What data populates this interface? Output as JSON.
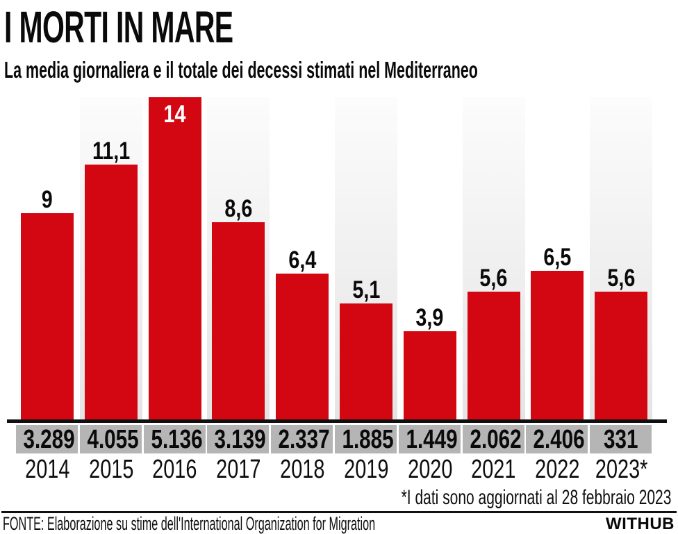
{
  "header": {
    "title": "I MORTI IN MARE",
    "subtitle": "La media giornaliera e il totale dei decessi stimati nel Mediterraneo"
  },
  "chart_data": {
    "type": "bar",
    "title": "I MORTI IN MARE",
    "subtitle": "La media giornaliera e il totale dei decessi stimati nel Mediterraneo",
    "categories": [
      "2014",
      "2015",
      "2016",
      "2017",
      "2018",
      "2019",
      "2020",
      "2021",
      "2022",
      "2023*"
    ],
    "series": [
      {
        "name": "Media giornaliera dei decessi",
        "values": [
          9,
          11.1,
          14,
          8.6,
          6.4,
          5.1,
          3.9,
          5.6,
          6.5,
          5.6
        ],
        "labels": [
          "9",
          "11,1",
          "14",
          "8,6",
          "6,4",
          "5,1",
          "3,9",
          "5,6",
          "6,5",
          "5,6"
        ]
      },
      {
        "name": "Totale dei decessi stimati",
        "values": [
          3289,
          4055,
          5136,
          3139,
          2337,
          1885,
          1449,
          2062,
          2406,
          331
        ],
        "labels": [
          "3.289",
          "4.055",
          "5.136",
          "3.139",
          "2.337",
          "1.885",
          "1.449",
          "2.062",
          "2.406",
          "331"
        ]
      }
    ],
    "ylim": [
      0,
      14
    ],
    "grid": false,
    "legend": "none",
    "annotations": [
      "*I dati sono aggiornati al 28 febbraio 2023"
    ],
    "colors": {
      "bar": "#d20712",
      "stripe_top": "#fcfcfc",
      "stripe_bottom": "#e4e4e4",
      "totals_box": "#b5b5b5",
      "axis": "#101010",
      "label_inside": "#ffffff",
      "label_outside": "#0a0a0a"
    }
  },
  "footnote": "*I dati sono aggiornati al 28 febbraio 2023",
  "footer": {
    "source": "FONTE: Elaborazione su stime dell'International Organization for Migration",
    "brand": "WITHUB"
  }
}
